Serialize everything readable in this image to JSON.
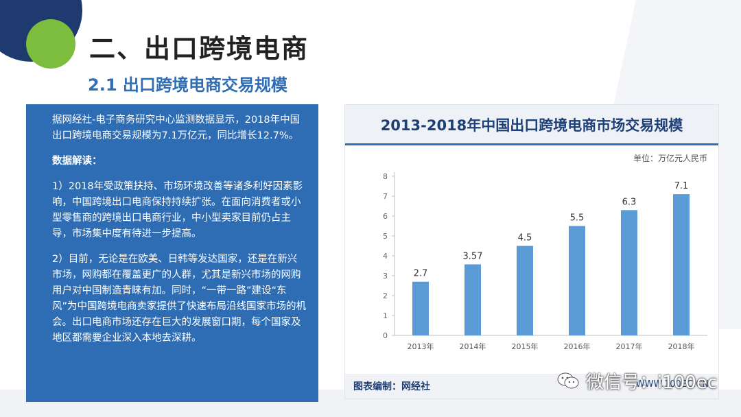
{
  "title": "二、出口跨境电商",
  "subtitle": "2.1  出口跨境电商交易规模",
  "panel": {
    "intro": "据网经社-电子商务研究中心监测数据显示，2018年中国出口跨境电商交易规模为7.1万亿元，同比增长12.7%。",
    "heading": "数据解读：",
    "point1": "1）2018年受政策扶持、市场环境改善等诸多利好因素影响，中国跨境出口电商保持持续扩张。在面向消费者或小型零售商的跨境出口电商行业，中小型卖家目前仍占主导，市场集中度有待进一步提高。",
    "point2": "2）目前，无论是在欧美、日韩等发达国家，还是在新兴市场，网购都在覆盖更广的人群，尤其是新兴市场的网购用户对中国制造青睐有加。同时，“一带一路”建设“东风”为中国跨境电商卖家提供了快速布局沿线国家市场的机会。出口电商市场还存在巨大的发展窗口期，每个国家及地区都需要企业深入本地去深耕。"
  },
  "chart_data": {
    "type": "bar",
    "title": "2013-2018年中国出口跨境电商市场交易规模",
    "unit": "单位：万亿元人民币",
    "categories": [
      "2013年",
      "2014年",
      "2015年",
      "2016年",
      "2017年",
      "2018年"
    ],
    "values": [
      2.7,
      3.57,
      4.5,
      5.5,
      6.3,
      7.1
    ],
    "value_labels": [
      "2.7",
      "3.57",
      "4.5",
      "5.5",
      "6.3",
      "7.1"
    ],
    "yticks": [
      0,
      1,
      2,
      3,
      4,
      5,
      6,
      7,
      8
    ],
    "ylim": [
      0,
      8
    ],
    "grid": false,
    "bar_color": "#5b9bd5",
    "source": "图表编制：网经社",
    "url": "WWW.100EC.CN"
  },
  "wechat": {
    "label": "微信号：i100ec",
    "icon": "wechat-icon"
  },
  "colors": {
    "panel_bg": "#2e6cb4",
    "accent_green": "#7dbd3e",
    "navy": "#1e3a6e",
    "subtitle": "#2f6db5"
  }
}
